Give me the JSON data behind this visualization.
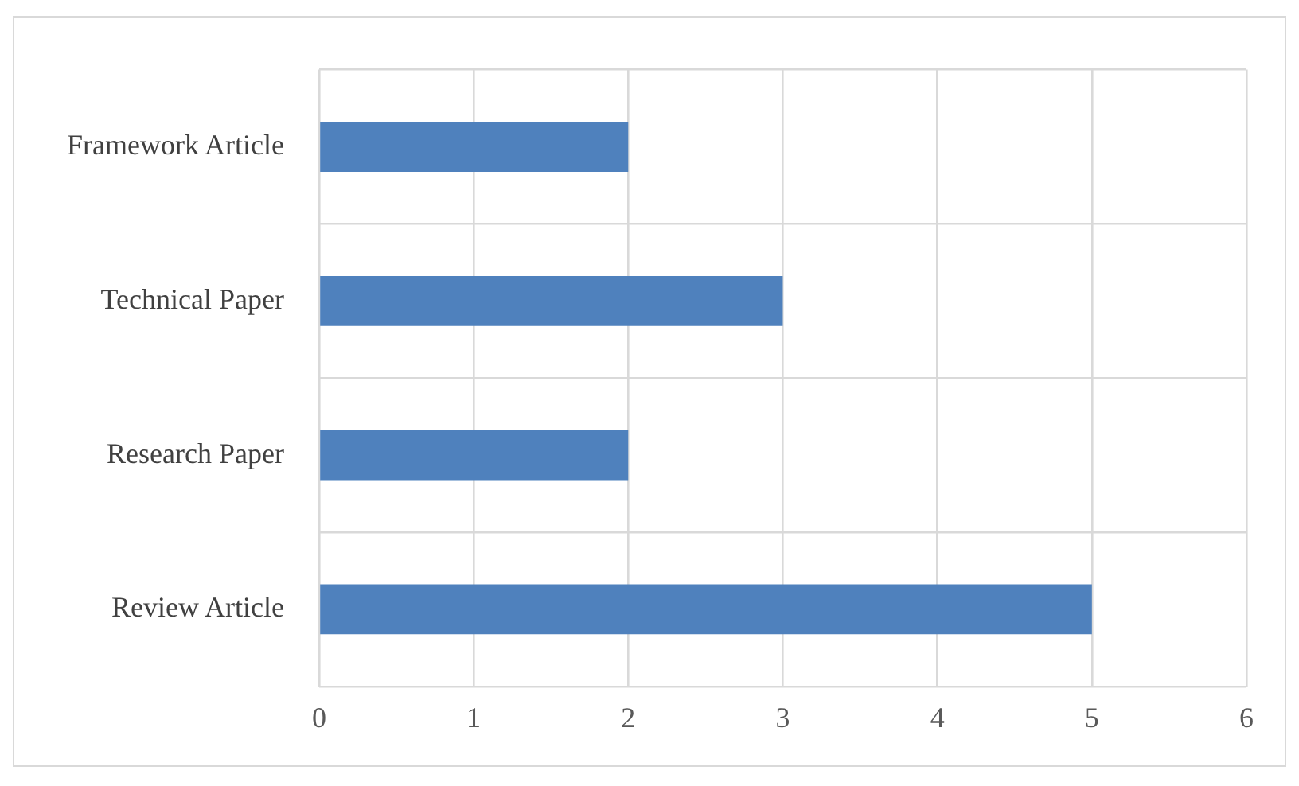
{
  "chart_data": {
    "type": "bar",
    "orientation": "horizontal",
    "categories": [
      "Framework Article",
      "Technical Paper",
      "Research Paper",
      "Review Article"
    ],
    "values": [
      2,
      3,
      2,
      5
    ],
    "color": "#4f81bd",
    "xlim": [
      0,
      6
    ],
    "xticks": [
      0,
      1,
      2,
      3,
      4,
      5,
      6
    ],
    "grid": true,
    "legend": false
  }
}
